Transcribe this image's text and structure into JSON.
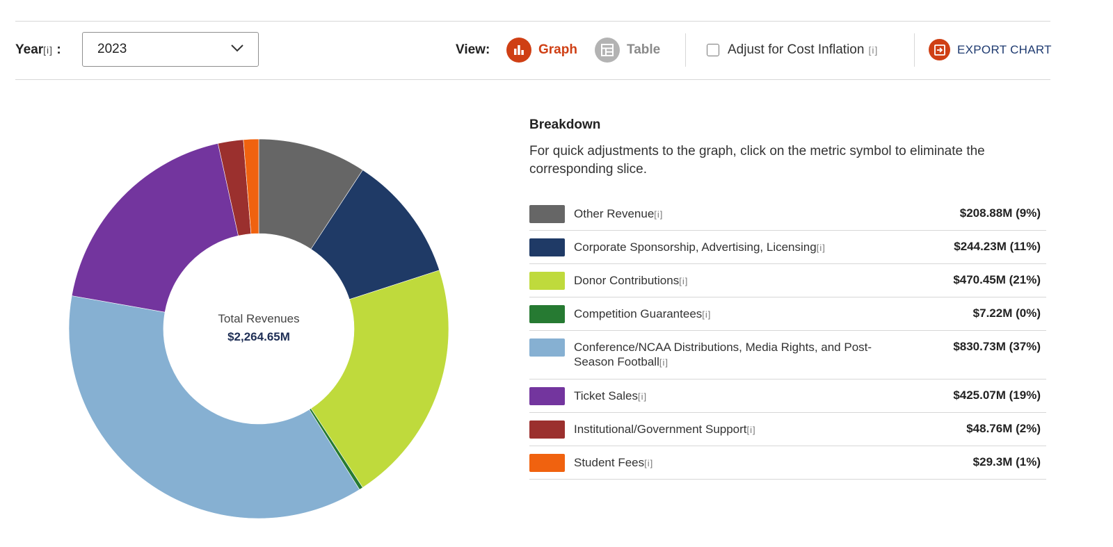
{
  "controls": {
    "year_label": "Year",
    "info_marker": "[i]",
    "year_colon": ":",
    "year_value": "2023",
    "view_label": "View:",
    "graph_label": "Graph",
    "table_label": "Table",
    "inflation_label": "Adjust for Cost Inflation",
    "inflation_checked": false,
    "export_label": "EXPORT CHART",
    "accent_color": "#cf3f14",
    "export_text_color": "#1e3a70"
  },
  "breakdown": {
    "title": "Breakdown",
    "description": "For quick adjustments to the graph, click on the metric symbol to eliminate the corresponding slice."
  },
  "chart_data": {
    "type": "pie",
    "donut": true,
    "center_label": "Total Revenues",
    "center_value": "$2,264.65M",
    "slices": [
      {
        "label": "Other Revenue",
        "value": 208.88,
        "display": "$208.88M (9%)",
        "color": "#666666"
      },
      {
        "label": "Corporate Sponsorship, Advertising, Licensing",
        "value": 244.23,
        "display": "$244.23M (11%)",
        "color": "#1f3a66"
      },
      {
        "label": "Donor Contributions",
        "value": 470.45,
        "display": "$470.45M (21%)",
        "color": "#bfda3c"
      },
      {
        "label": "Competition Guarantees",
        "value": 7.22,
        "display": "$7.22M (0%)",
        "color": "#267a32"
      },
      {
        "label": "Conference/NCAA Distributions, Media Rights, and Post-Season Football",
        "value": 830.73,
        "display": "$830.73M (37%)",
        "color": "#86b0d2"
      },
      {
        "label": "Ticket Sales",
        "value": 425.07,
        "display": "$425.07M (19%)",
        "color": "#73359e"
      },
      {
        "label": "Institutional/Government Support",
        "value": 48.76,
        "display": "$48.76M (2%)",
        "color": "#9b302e"
      },
      {
        "label": "Student Fees",
        "value": 29.3,
        "display": "$29.3M (1%)",
        "color": "#f0620f"
      }
    ]
  }
}
